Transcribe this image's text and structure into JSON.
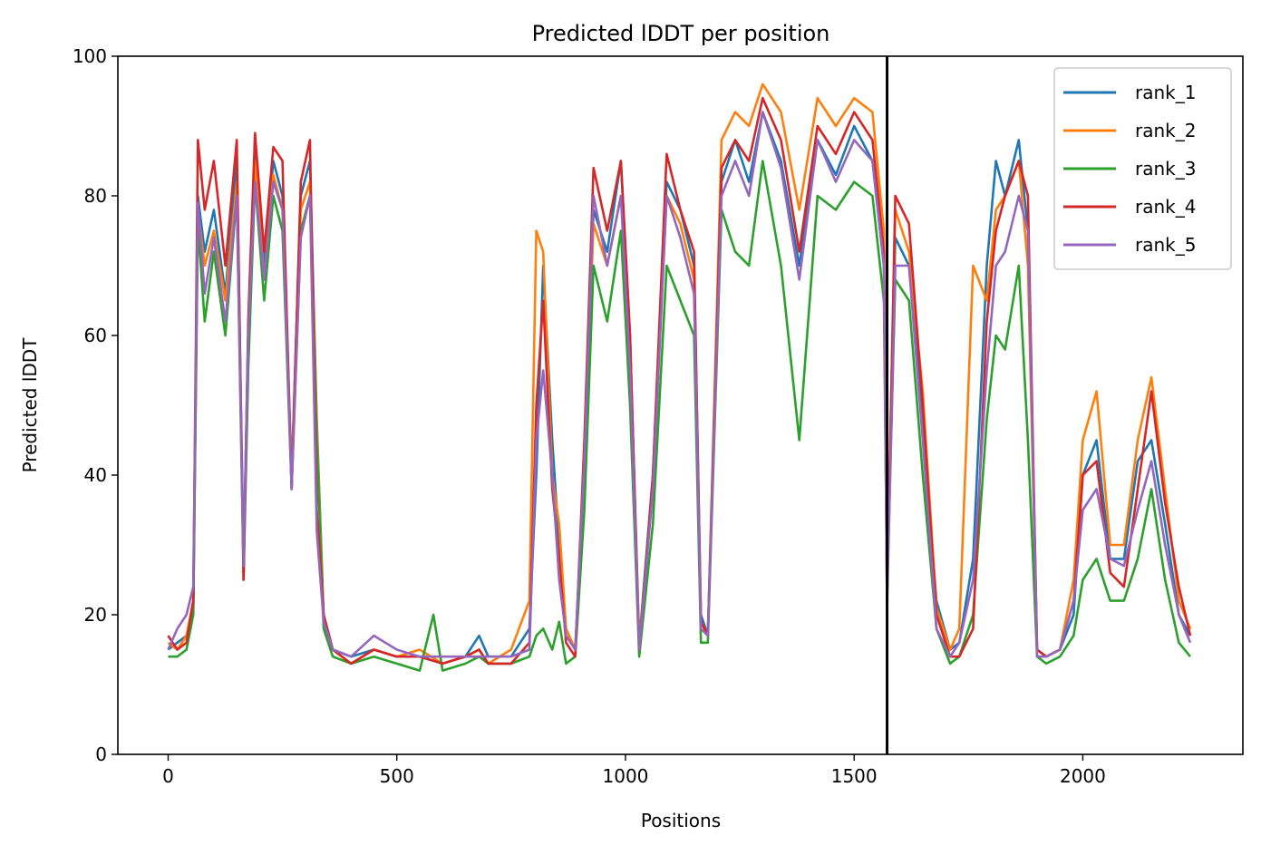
{
  "chart_data": {
    "type": "line",
    "title": "Predicted lDDT per position",
    "xlabel": "Positions",
    "ylabel": "Predicted lDDT",
    "xlim": [
      -110,
      2350
    ],
    "ylim": [
      0,
      100
    ],
    "xticks": [
      0,
      500,
      1000,
      1500,
      2000
    ],
    "yticks": [
      0,
      20,
      40,
      60,
      80,
      100
    ],
    "grid": false,
    "legend_position": "top-right",
    "vertical_line_x": 1572,
    "series": [
      {
        "name": "rank_1",
        "color": "#1f77b4",
        "x": [
          0,
          20,
          40,
          55,
          65,
          80,
          100,
          125,
          150,
          165,
          175,
          190,
          210,
          230,
          250,
          270,
          290,
          310,
          325,
          340,
          360,
          400,
          450,
          500,
          550,
          600,
          650,
          680,
          700,
          750,
          790,
          805,
          820,
          840,
          855,
          870,
          890,
          910,
          930,
          960,
          990,
          1010,
          1030,
          1060,
          1090,
          1120,
          1150,
          1165,
          1180,
          1210,
          1240,
          1270,
          1300,
          1340,
          1380,
          1420,
          1460,
          1500,
          1540,
          1565,
          1572,
          1590,
          1620,
          1650,
          1680,
          1710,
          1730,
          1760,
          1790,
          1810,
          1830,
          1860,
          1880,
          1900,
          1920,
          1950,
          1980,
          2000,
          2030,
          2060,
          2090,
          2120,
          2150,
          2180,
          2210,
          2235
        ],
        "y": [
          15,
          16,
          17,
          20,
          80,
          72,
          78,
          66,
          85,
          28,
          60,
          88,
          70,
          85,
          80,
          40,
          80,
          85,
          48,
          20,
          15,
          14,
          15,
          14,
          14,
          13,
          14,
          17,
          14,
          14,
          18,
          40,
          70,
          45,
          30,
          18,
          15,
          40,
          78,
          72,
          85,
          60,
          16,
          40,
          82,
          78,
          70,
          20,
          17,
          82,
          88,
          82,
          92,
          85,
          70,
          88,
          83,
          90,
          85,
          70,
          25,
          74,
          70,
          48,
          22,
          15,
          16,
          28,
          70,
          85,
          80,
          88,
          75,
          15,
          14,
          15,
          20,
          40,
          45,
          28,
          28,
          42,
          45,
          33,
          20,
          17
        ]
      },
      {
        "name": "rank_2",
        "color": "#ff7f0e",
        "x": [
          0,
          20,
          40,
          55,
          65,
          80,
          100,
          125,
          150,
          165,
          175,
          190,
          210,
          230,
          250,
          270,
          290,
          310,
          325,
          340,
          360,
          400,
          450,
          500,
          550,
          600,
          650,
          680,
          700,
          750,
          790,
          805,
          820,
          840,
          855,
          870,
          890,
          910,
          930,
          960,
          990,
          1010,
          1030,
          1060,
          1090,
          1120,
          1150,
          1165,
          1180,
          1210,
          1240,
          1270,
          1300,
          1340,
          1380,
          1420,
          1460,
          1500,
          1540,
          1565,
          1572,
          1590,
          1620,
          1650,
          1680,
          1710,
          1730,
          1760,
          1790,
          1810,
          1830,
          1860,
          1880,
          1900,
          1920,
          1950,
          1980,
          2000,
          2030,
          2060,
          2090,
          2120,
          2150,
          2180,
          2210,
          2235
        ],
        "y": [
          16,
          15,
          17,
          22,
          78,
          70,
          75,
          65,
          82,
          27,
          58,
          85,
          68,
          83,
          78,
          40,
          78,
          82,
          47,
          19,
          15,
          13,
          15,
          14,
          15,
          13,
          14,
          15,
          13,
          15,
          22,
          75,
          72,
          40,
          33,
          18,
          15,
          40,
          76,
          70,
          80,
          58,
          16,
          38,
          80,
          76,
          68,
          19,
          17,
          88,
          92,
          90,
          96,
          92,
          78,
          94,
          90,
          94,
          92,
          75,
          25,
          78,
          72,
          52,
          21,
          15,
          18,
          70,
          65,
          78,
          80,
          85,
          70,
          15,
          14,
          15,
          25,
          45,
          52,
          30,
          30,
          45,
          54,
          38,
          22,
          18
        ]
      },
      {
        "name": "rank_3",
        "color": "#2ca02c",
        "x": [
          0,
          20,
          40,
          55,
          65,
          80,
          100,
          125,
          150,
          165,
          175,
          190,
          210,
          230,
          250,
          270,
          290,
          310,
          325,
          340,
          360,
          400,
          450,
          500,
          550,
          580,
          600,
          650,
          680,
          700,
          750,
          790,
          805,
          820,
          840,
          855,
          870,
          890,
          910,
          930,
          960,
          990,
          1010,
          1030,
          1060,
          1090,
          1120,
          1150,
          1165,
          1180,
          1210,
          1240,
          1270,
          1300,
          1340,
          1380,
          1420,
          1460,
          1500,
          1540,
          1565,
          1572,
          1590,
          1620,
          1650,
          1680,
          1710,
          1730,
          1760,
          1790,
          1810,
          1830,
          1860,
          1880,
          1900,
          1920,
          1950,
          1980,
          2000,
          2030,
          2060,
          2090,
          2120,
          2150,
          2180,
          2210,
          2235
        ],
        "y": [
          14,
          14,
          15,
          20,
          76,
          62,
          72,
          60,
          80,
          25,
          55,
          82,
          65,
          80,
          75,
          38,
          75,
          80,
          45,
          18,
          14,
          13,
          14,
          13,
          12,
          20,
          12,
          13,
          14,
          13,
          13,
          14,
          17,
          18,
          15,
          19,
          13,
          14,
          35,
          70,
          62,
          75,
          50,
          14,
          33,
          70,
          65,
          60,
          16,
          16,
          78,
          72,
          70,
          85,
          70,
          45,
          80,
          78,
          82,
          80,
          65,
          23,
          68,
          65,
          40,
          18,
          13,
          14,
          20,
          48,
          60,
          58,
          70,
          45,
          14,
          13,
          14,
          17,
          25,
          28,
          22,
          22,
          28,
          38,
          25,
          16,
          14
        ]
      },
      {
        "name": "rank_4",
        "color": "#d62728",
        "x": [
          0,
          20,
          40,
          55,
          65,
          80,
          100,
          125,
          150,
          165,
          175,
          190,
          210,
          230,
          250,
          270,
          290,
          310,
          325,
          340,
          360,
          400,
          450,
          500,
          550,
          600,
          650,
          680,
          700,
          750,
          790,
          805,
          820,
          840,
          855,
          870,
          890,
          910,
          930,
          960,
          990,
          1010,
          1030,
          1060,
          1090,
          1120,
          1150,
          1165,
          1180,
          1210,
          1240,
          1270,
          1300,
          1340,
          1380,
          1420,
          1460,
          1500,
          1540,
          1565,
          1572,
          1590,
          1620,
          1650,
          1680,
          1710,
          1730,
          1760,
          1790,
          1810,
          1830,
          1860,
          1880,
          1900,
          1920,
          1950,
          1980,
          2000,
          2030,
          2060,
          2090,
          2120,
          2150,
          2180,
          2210,
          2235
        ],
        "y": [
          17,
          15,
          16,
          22,
          88,
          78,
          85,
          70,
          88,
          25,
          62,
          89,
          72,
          87,
          85,
          38,
          82,
          88,
          35,
          20,
          15,
          13,
          15,
          14,
          14,
          13,
          14,
          15,
          13,
          13,
          16,
          50,
          65,
          38,
          28,
          16,
          14,
          45,
          84,
          75,
          85,
          60,
          15,
          40,
          86,
          78,
          72,
          19,
          17,
          84,
          88,
          85,
          94,
          88,
          72,
          90,
          86,
          92,
          88,
          72,
          22,
          80,
          76,
          50,
          20,
          14,
          14,
          18,
          62,
          75,
          80,
          85,
          80,
          15,
          14,
          15,
          22,
          40,
          42,
          26,
          24,
          38,
          52,
          36,
          24,
          17
        ]
      },
      {
        "name": "rank_5",
        "color": "#9467bd",
        "x": [
          0,
          20,
          40,
          55,
          65,
          80,
          100,
          125,
          150,
          165,
          175,
          190,
          210,
          230,
          250,
          270,
          290,
          310,
          325,
          340,
          360,
          400,
          450,
          500,
          550,
          600,
          650,
          680,
          700,
          750,
          790,
          805,
          820,
          840,
          855,
          870,
          890,
          910,
          930,
          960,
          990,
          1010,
          1030,
          1060,
          1090,
          1120,
          1150,
          1165,
          1180,
          1210,
          1240,
          1270,
          1300,
          1340,
          1380,
          1420,
          1460,
          1500,
          1540,
          1565,
          1572,
          1590,
          1620,
          1650,
          1680,
          1710,
          1730,
          1760,
          1790,
          1810,
          1830,
          1860,
          1880,
          1900,
          1920,
          1950,
          1980,
          2000,
          2030,
          2060,
          2090,
          2120,
          2150,
          2180,
          2210,
          2235
        ],
        "y": [
          15,
          18,
          20,
          24,
          79,
          66,
          74,
          62,
          80,
          27,
          60,
          82,
          68,
          82,
          78,
          38,
          74,
          80,
          32,
          19,
          15,
          14,
          17,
          15,
          14,
          14,
          14,
          14,
          14,
          14,
          15,
          45,
          55,
          40,
          25,
          17,
          15,
          42,
          80,
          70,
          80,
          55,
          15,
          38,
          80,
          74,
          66,
          18,
          17,
          80,
          85,
          80,
          92,
          84,
          68,
          88,
          82,
          88,
          85,
          70,
          21,
          70,
          70,
          45,
          18,
          14,
          16,
          25,
          55,
          70,
          72,
          80,
          75,
          14,
          14,
          15,
          22,
          35,
          38,
          28,
          27,
          35,
          42,
          30,
          20,
          16
        ]
      }
    ]
  }
}
